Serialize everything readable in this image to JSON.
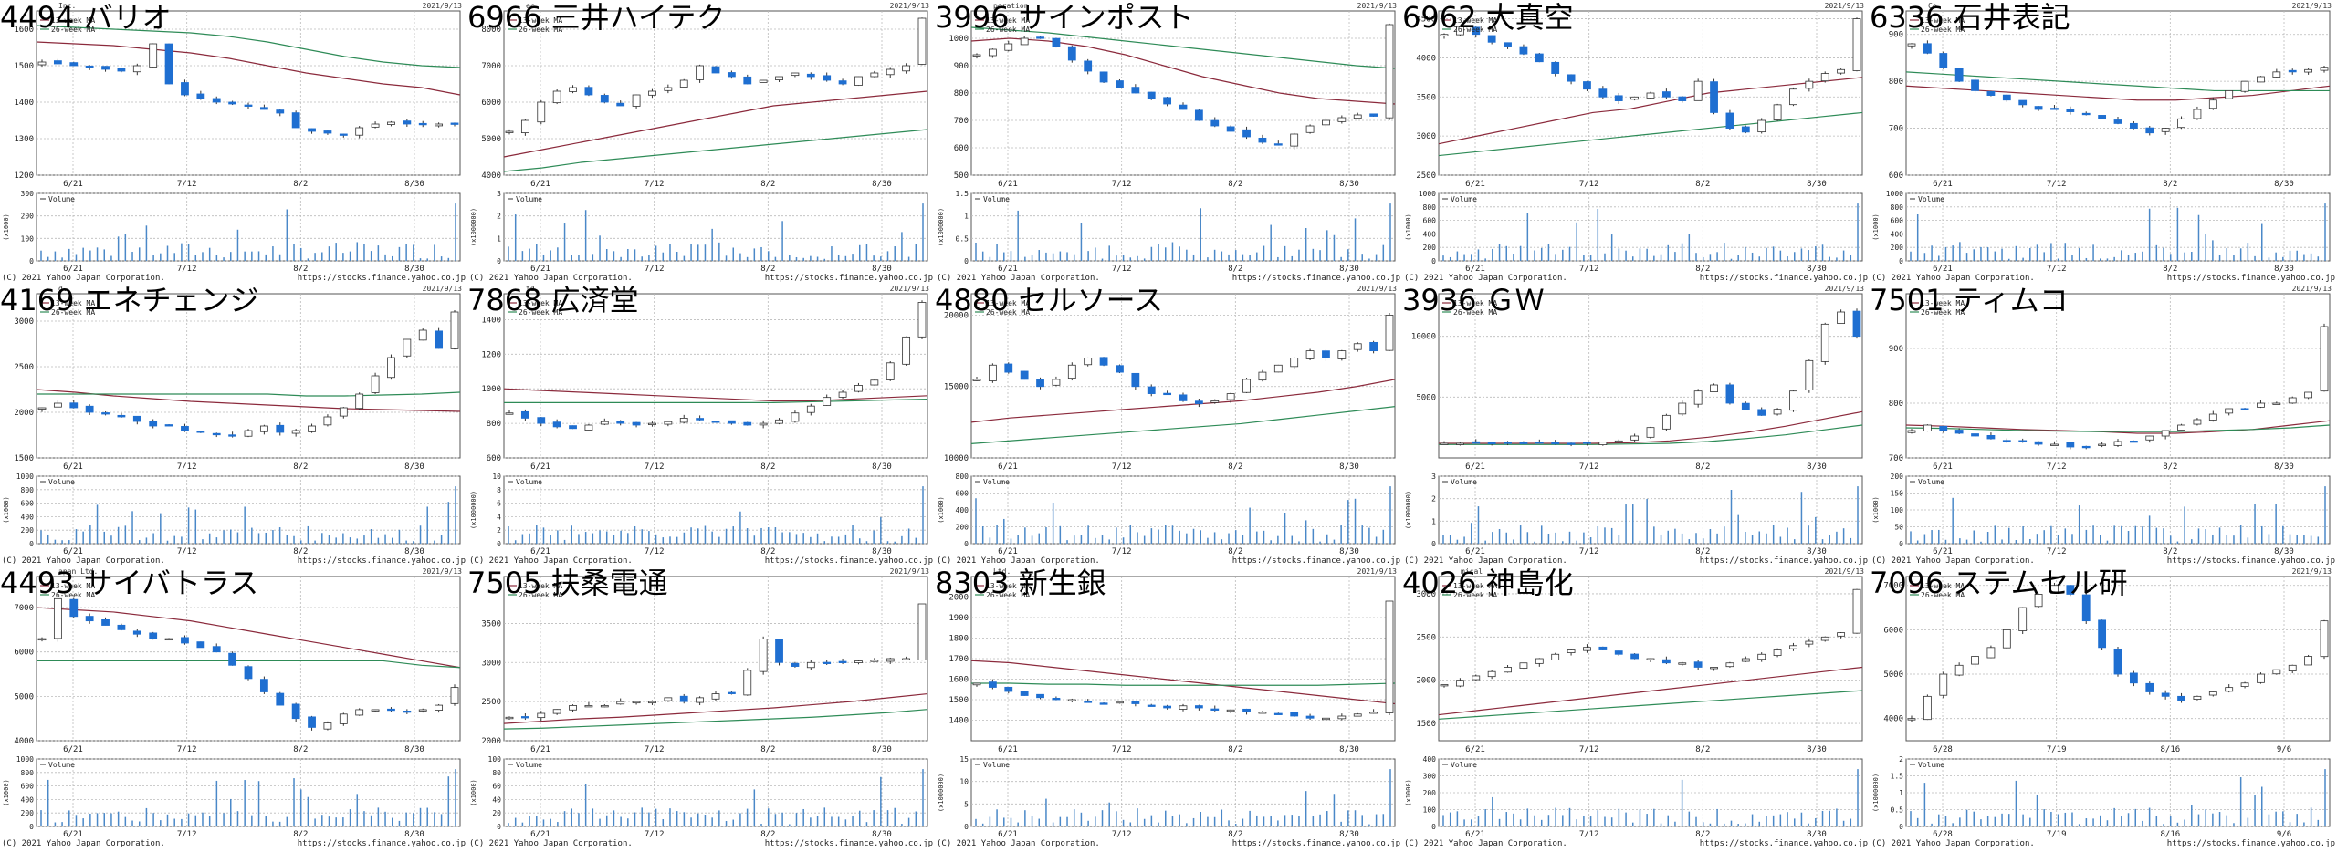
{
  "page": {
    "copyright": "(C) 2021 Yahoo Japan Corporation.",
    "source": "https://stocks.finance.yahoo.co.jp",
    "volume_legend": "Volume",
    "ma_labels": [
      "13-week MA",
      "26-week MA"
    ]
  },
  "colors": {
    "up_candle_fill": "#ffffff",
    "down_candle_fill": "#1f6fd1",
    "candle_stroke": "#333333",
    "ma13": "#8b2a3c",
    "ma26": "#2e8b57",
    "volume_bar": "#4a88c8",
    "grid": "#bbbbbb"
  },
  "chart_data": [
    {
      "type": "candlestick",
      "code": "4494",
      "name": "バリオ",
      "date": "2021/9/13",
      "header": "Inc.",
      "x_ticks": [
        "6/21",
        "7/12",
        "8/2",
        "8/30"
      ],
      "ylim": [
        1200,
        1650
      ],
      "y_ticks": [
        1200,
        1300,
        1400,
        1500,
        1600
      ],
      "vol_ylim": [
        0,
        300
      ],
      "vol_ticks": [
        0,
        100,
        200,
        300
      ],
      "vol_unit": "(x1000)",
      "price_path": [
        1510,
        1505,
        1500,
        1495,
        1490,
        1485,
        1500,
        1560,
        1450,
        1420,
        1410,
        1400,
        1395,
        1390,
        1380,
        1370,
        1330,
        1320,
        1315,
        1310,
        1330,
        1340,
        1345,
        1340,
        1338,
        1340,
        1340
      ],
      "ma13": [
        1565,
        1560,
        1555,
        1545,
        1535,
        1520,
        1500,
        1480,
        1465,
        1450,
        1440,
        1420
      ],
      "ma26": [
        1610,
        1605,
        1600,
        1595,
        1590,
        1580,
        1565,
        1545,
        1525,
        1510,
        1500,
        1495
      ]
    },
    {
      "type": "candlestick",
      "code": "6966",
      "name": "三井ハイテク",
      "date": "2021/9/13",
      "header": "ec.",
      "x_ticks": [
        "6/21",
        "7/12",
        "8/2",
        "8/30"
      ],
      "ylim": [
        4000,
        8500
      ],
      "y_ticks": [
        4000,
        5000,
        6000,
        7000,
        8000
      ],
      "vol_ylim": [
        0,
        3
      ],
      "vol_ticks": [
        0,
        1,
        2,
        3
      ],
      "vol_unit": "(x1000000)",
      "price_path": [
        5200,
        5500,
        6000,
        6300,
        6400,
        6200,
        6000,
        5900,
        6200,
        6300,
        6400,
        6600,
        7000,
        6800,
        6700,
        6500,
        6600,
        6700,
        6800,
        6700,
        6600,
        6500,
        6700,
        6800,
        6900,
        7000,
        8300
      ],
      "ma13": [
        4500,
        4700,
        4900,
        5100,
        5300,
        5500,
        5700,
        5900,
        6000,
        6100,
        6200,
        6300
      ],
      "ma26": [
        4100,
        4200,
        4350,
        4450,
        4550,
        4650,
        4750,
        4850,
        4950,
        5050,
        5150,
        5250
      ]
    },
    {
      "type": "candlestick",
      "code": "3996",
      "name": "サインポスト",
      "date": "2021/9/13",
      "header": "poration",
      "x_ticks": [
        "6/21",
        "7/12",
        "8/2",
        "8/30"
      ],
      "ylim": [
        500,
        1100
      ],
      "y_ticks": [
        500,
        600,
        700,
        800,
        900,
        1000
      ],
      "vol_ylim": [
        0,
        1.5
      ],
      "vol_ticks": [
        0,
        0.5,
        1,
        1.5
      ],
      "vol_unit": "(x1000000)",
      "price_path": [
        940,
        960,
        980,
        1000,
        1000,
        970,
        920,
        880,
        840,
        820,
        800,
        780,
        760,
        740,
        700,
        680,
        660,
        640,
        620,
        610,
        650,
        680,
        700,
        710,
        720,
        715,
        1050
      ],
      "ma13": [
        990,
        1000,
        990,
        970,
        940,
        900,
        860,
        830,
        800,
        780,
        770,
        760
      ],
      "ma26": [
        1040,
        1030,
        1020,
        1005,
        990,
        975,
        960,
        945,
        930,
        915,
        900,
        890
      ]
    },
    {
      "type": "candlestick",
      "code": "6962",
      "name": "大真空",
      "date": "2021/9/13",
      "header": "",
      "x_ticks": [
        "6/21",
        "7/12",
        "8/2",
        "8/30"
      ],
      "ylim": [
        2500,
        4600
      ],
      "y_ticks": [
        2500,
        3000,
        3500,
        4000,
        4500
      ],
      "vol_ylim": [
        0,
        1000
      ],
      "vol_ticks": [
        0,
        200,
        400,
        600,
        800,
        1000
      ],
      "vol_unit": "(x1000)",
      "price_path": [
        4300,
        4400,
        4300,
        4200,
        4150,
        4050,
        3950,
        3800,
        3700,
        3600,
        3500,
        3450,
        3500,
        3550,
        3500,
        3450,
        3700,
        3300,
        3100,
        3050,
        3200,
        3400,
        3600,
        3700,
        3800,
        3850,
        4500
      ],
      "ma13": [
        2900,
        3000,
        3100,
        3200,
        3300,
        3350,
        3450,
        3550,
        3600,
        3650,
        3700,
        3750
      ],
      "ma26": [
        2750,
        2800,
        2850,
        2900,
        2950,
        3000,
        3050,
        3100,
        3150,
        3200,
        3250,
        3300
      ]
    },
    {
      "type": "candlestick",
      "code": "6336",
      "name": "石井表記",
      "date": "2021/9/13",
      "header": "Co.",
      "x_ticks": [
        "6/21",
        "7/12",
        "8/2",
        "8/30"
      ],
      "ylim": [
        600,
        950
      ],
      "y_ticks": [
        600,
        700,
        800,
        900
      ],
      "vol_ylim": [
        0,
        1000
      ],
      "vol_ticks": [
        0,
        200,
        400,
        600,
        800,
        1000
      ],
      "vol_unit": "(x1000)",
      "price_path": [
        880,
        860,
        830,
        800,
        780,
        770,
        760,
        750,
        740,
        740,
        735,
        730,
        720,
        710,
        700,
        690,
        700,
        720,
        740,
        760,
        780,
        800,
        810,
        820,
        820,
        825,
        830
      ],
      "ma13": [
        790,
        785,
        780,
        775,
        770,
        765,
        760,
        760,
        765,
        770,
        780,
        790
      ],
      "ma26": [
        820,
        815,
        810,
        805,
        800,
        795,
        790,
        785,
        780,
        780,
        780,
        780
      ]
    },
    {
      "type": "candlestick",
      "code": "4169",
      "name": "エネチェンジ",
      "date": "2021/9/13",
      "header": "d.",
      "x_ticks": [
        "6/21",
        "7/12",
        "8/2",
        "8/30"
      ],
      "ylim": [
        1500,
        3300
      ],
      "y_ticks": [
        1500,
        2000,
        2500,
        3000
      ],
      "vol_ylim": [
        0,
        1000
      ],
      "vol_ticks": [
        0,
        200,
        400,
        600,
        800,
        1000
      ],
      "vol_unit": "(x1000)",
      "price_path": [
        2050,
        2100,
        2050,
        2000,
        1980,
        1950,
        1900,
        1850,
        1850,
        1800,
        1780,
        1760,
        1750,
        1800,
        1850,
        1780,
        1800,
        1850,
        1950,
        2050,
        2200,
        2400,
        2600,
        2800,
        2900,
        2700,
        3100
      ],
      "ma13": [
        2250,
        2220,
        2180,
        2150,
        2120,
        2100,
        2080,
        2060,
        2040,
        2030,
        2020,
        2010
      ],
      "ma26": [
        2200,
        2200,
        2200,
        2200,
        2200,
        2200,
        2200,
        2180,
        2180,
        2190,
        2200,
        2220
      ]
    },
    {
      "type": "candlestick",
      "code": "7868",
      "name": "広済堂",
      "date": "2021/9/13",
      "header": "td.",
      "x_ticks": [
        "6/21",
        "7/12",
        "8/2",
        "8/30"
      ],
      "ylim": [
        600,
        1550
      ],
      "y_ticks": [
        600,
        800,
        1000,
        1200,
        1400
      ],
      "vol_ylim": [
        0,
        10
      ],
      "vol_ticks": [
        0,
        2,
        4,
        6,
        8,
        10
      ],
      "vol_unit": "(x1000000)",
      "price_path": [
        860,
        830,
        800,
        780,
        770,
        790,
        810,
        800,
        790,
        800,
        810,
        830,
        820,
        810,
        800,
        790,
        800,
        820,
        860,
        900,
        950,
        980,
        1020,
        1050,
        1150,
        1300,
        1500
      ],
      "ma13": [
        1000,
        990,
        980,
        970,
        960,
        950,
        940,
        930,
        930,
        940,
        950,
        960
      ],
      "ma26": [
        920,
        920,
        920,
        920,
        920,
        920,
        920,
        920,
        925,
        930,
        935,
        940
      ]
    },
    {
      "type": "candlestick",
      "code": "4880",
      "name": "セルソース",
      "date": "2021/9/13",
      "header": "",
      "x_ticks": [
        "6/21",
        "7/12",
        "8/2",
        "8/30"
      ],
      "ylim": [
        10000,
        21500
      ],
      "y_ticks": [
        10000,
        15000,
        20000
      ],
      "vol_ylim": [
        0,
        800
      ],
      "vol_ticks": [
        0,
        200,
        400,
        600,
        800
      ],
      "vol_unit": "(x1000)",
      "price_path": [
        15500,
        16500,
        16000,
        15500,
        15000,
        15500,
        16500,
        17000,
        16500,
        16000,
        15000,
        14500,
        14500,
        14000,
        13800,
        14000,
        14500,
        15500,
        16000,
        16500,
        17000,
        17500,
        17000,
        17500,
        18000,
        17500,
        20000
      ],
      "ma13": [
        12500,
        12800,
        13000,
        13200,
        13400,
        13600,
        13800,
        14000,
        14300,
        14600,
        15000,
        15500
      ],
      "ma26": [
        11000,
        11200,
        11400,
        11600,
        11800,
        12000,
        12200,
        12400,
        12700,
        13000,
        13300,
        13600
      ]
    },
    {
      "type": "candlestick",
      "code": "3936",
      "name": "ＧＷ",
      "date": "2021/9/13",
      "header": "",
      "x_ticks": [
        "6/21",
        "7/12",
        "8/2",
        "8/30"
      ],
      "ylim": [
        0,
        13500
      ],
      "y_ticks": [
        5000,
        10000
      ],
      "vol_ylim": [
        0,
        3
      ],
      "vol_ticks": [
        0,
        1,
        2,
        3
      ],
      "vol_unit": "(x1000000)",
      "price_path": [
        1200,
        1200,
        1200,
        1200,
        1200,
        1200,
        1200,
        1200,
        1200,
        1200,
        1300,
        1400,
        1800,
        2500,
        3500,
        4500,
        5500,
        6000,
        4500,
        4000,
        3500,
        4000,
        5500,
        8000,
        11000,
        12000,
        10000
      ],
      "ma13": [
        1200,
        1200,
        1200,
        1200,
        1200,
        1250,
        1400,
        1700,
        2100,
        2600,
        3200,
        3800
      ],
      "ma26": [
        1100,
        1100,
        1100,
        1100,
        1100,
        1150,
        1200,
        1350,
        1600,
        1900,
        2300,
        2700
      ]
    },
    {
      "type": "candlestick",
      "code": "7501",
      "name": "ティムコ",
      "date": "2021/9/13",
      "header": "",
      "x_ticks": [
        "6/21",
        "7/12",
        "8/2",
        "8/30"
      ],
      "ylim": [
        700,
        1000
      ],
      "y_ticks": [
        700,
        800,
        900
      ],
      "vol_ylim": [
        0,
        200
      ],
      "vol_ticks": [
        0,
        50,
        100,
        150,
        200
      ],
      "vol_unit": "(x1000)",
      "price_path": [
        750,
        760,
        750,
        745,
        740,
        735,
        730,
        730,
        725,
        725,
        720,
        720,
        725,
        730,
        730,
        740,
        750,
        760,
        770,
        780,
        790,
        790,
        800,
        800,
        810,
        820,
        940
      ],
      "ma13": [
        760,
        758,
        755,
        752,
        750,
        748,
        745,
        745,
        748,
        752,
        760,
        768
      ],
      "ma26": [
        755,
        754,
        752,
        750,
        749,
        748,
        748,
        748,
        750,
        752,
        755,
        760
      ]
    },
    {
      "type": "candlestick",
      "code": "4493",
      "name": "サイバトラス",
      "date": "2021/9/13",
      "header": "apan Ltd.",
      "x_ticks": [
        "6/21",
        "7/12",
        "8/2",
        "8/30"
      ],
      "ylim": [
        4000,
        7700
      ],
      "y_ticks": [
        4000,
        5000,
        6000,
        7000
      ],
      "vol_ylim": [
        0,
        1000
      ],
      "vol_ticks": [
        0,
        200,
        400,
        600,
        800,
        1000
      ],
      "vol_unit": "(x1000)",
      "price_path": [
        6300,
        7200,
        6800,
        6700,
        6600,
        6500,
        6400,
        6300,
        6300,
        6200,
        6100,
        6000,
        5700,
        5400,
        5100,
        4800,
        4500,
        4300,
        4400,
        4600,
        4700,
        4700,
        4700,
        4650,
        4700,
        4800,
        5200
      ],
      "ma13": [
        7000,
        6950,
        6900,
        6800,
        6700,
        6550,
        6400,
        6250,
        6100,
        5950,
        5800,
        5650
      ],
      "ma26": [
        5800,
        5800,
        5800,
        5800,
        5800,
        5800,
        5800,
        5800,
        5800,
        5800,
        5700,
        5650
      ]
    },
    {
      "type": "candlestick",
      "code": "7505",
      "name": "扶桑電通",
      "date": "2021/9/13",
      "header": "",
      "x_ticks": [
        "6/21",
        "7/12",
        "8/2",
        "8/30"
      ],
      "ylim": [
        2000,
        4100
      ],
      "y_ticks": [
        2000,
        2500,
        3000,
        3500
      ],
      "vol_ylim": [
        0,
        100
      ],
      "vol_ticks": [
        0,
        20,
        40,
        60,
        80,
        100
      ],
      "vol_unit": "(x1000)",
      "price_path": [
        2300,
        2300,
        2350,
        2400,
        2450,
        2450,
        2450,
        2500,
        2500,
        2500,
        2550,
        2500,
        2550,
        2600,
        2600,
        2900,
        3300,
        3000,
        2950,
        3000,
        3000,
        3000,
        3020,
        3030,
        3050,
        3050,
        3750
      ],
      "ma13": [
        2220,
        2250,
        2280,
        2300,
        2330,
        2360,
        2390,
        2420,
        2460,
        2500,
        2550,
        2600
      ],
      "ma26": [
        2150,
        2160,
        2180,
        2200,
        2220,
        2240,
        2260,
        2280,
        2300,
        2330,
        2360,
        2400
      ]
    },
    {
      "type": "candlestick",
      "code": "8303",
      "name": "新生銀",
      "date": "2021/9/13",
      "header": "Ltd.",
      "x_ticks": [
        "6/21",
        "7/12",
        "8/2",
        "8/30"
      ],
      "ylim": [
        1300,
        2100
      ],
      "y_ticks": [
        1400,
        1500,
        1600,
        1700,
        1800,
        1900,
        2000
      ],
      "vol_ylim": [
        0,
        15
      ],
      "vol_ticks": [
        0,
        5,
        10,
        15
      ],
      "vol_unit": "(x1000000)",
      "price_path": [
        1580,
        1560,
        1540,
        1520,
        1510,
        1500,
        1500,
        1490,
        1480,
        1490,
        1480,
        1470,
        1460,
        1470,
        1460,
        1450,
        1450,
        1440,
        1440,
        1430,
        1420,
        1410,
        1410,
        1420,
        1430,
        1440,
        1980
      ],
      "ma13": [
        1690,
        1680,
        1660,
        1640,
        1620,
        1600,
        1580,
        1560,
        1540,
        1520,
        1500,
        1480
      ],
      "ma26": [
        1580,
        1580,
        1575,
        1575,
        1570,
        1570,
        1570,
        1570,
        1570,
        1570,
        1575,
        1580
      ]
    },
    {
      "type": "candlestick",
      "code": "4026",
      "name": "神島化",
      "date": "2021/9/13",
      "header": "mical",
      "x_ticks": [
        "6/21",
        "7/12",
        "8/2",
        "8/30"
      ],
      "ylim": [
        1300,
        3200
      ],
      "y_ticks": [
        1500,
        2000,
        2500,
        3000
      ],
      "vol_ylim": [
        0,
        400
      ],
      "vol_ticks": [
        0,
        100,
        200,
        300,
        400
      ],
      "vol_unit": "(x1000)",
      "price_path": [
        1950,
        2000,
        2050,
        2100,
        2150,
        2200,
        2250,
        2300,
        2350,
        2380,
        2350,
        2300,
        2250,
        2250,
        2200,
        2200,
        2150,
        2150,
        2200,
        2250,
        2300,
        2350,
        2400,
        2450,
        2500,
        2550,
        3050
      ],
      "ma13": [
        1600,
        1650,
        1700,
        1750,
        1800,
        1850,
        1900,
        1950,
        2000,
        2050,
        2100,
        2150
      ],
      "ma26": [
        1550,
        1580,
        1610,
        1640,
        1670,
        1700,
        1730,
        1760,
        1790,
        1820,
        1850,
        1880
      ]
    },
    {
      "type": "candlestick",
      "code": "7096",
      "name": "ステムセル研",
      "date": "2021/9/13",
      "header": "",
      "x_ticks": [
        "6/28",
        "7/19",
        "8/16",
        "9/6"
      ],
      "ylim": [
        3500,
        7200
      ],
      "y_ticks": [
        4000,
        5000,
        6000,
        7000
      ],
      "vol_ylim": [
        0,
        2
      ],
      "vol_ticks": [
        0,
        0.5,
        1,
        1.5,
        2
      ],
      "vol_unit": "(x1000000)",
      "price_path": [
        4000,
        4500,
        5000,
        5200,
        5400,
        5600,
        6000,
        6500,
        6800,
        7000,
        6800,
        6200,
        5600,
        5000,
        4800,
        4600,
        4500,
        4400,
        4500,
        4600,
        4700,
        4800,
        5000,
        5100,
        5200,
        5400,
        6200
      ],
      "ma13": [],
      "ma26": []
    }
  ]
}
